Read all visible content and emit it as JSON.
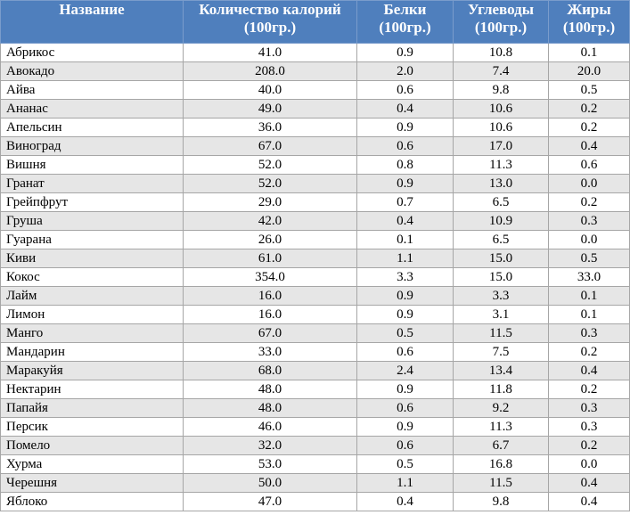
{
  "table": {
    "headers": [
      "Название",
      "Количество калорий (100гр.)",
      "Белки (100гр.)",
      "Углеводы (100гр.)",
      "Жиры (100гр.)"
    ],
    "rows": [
      [
        "Абрикос",
        "41.0",
        "0.9",
        "10.8",
        "0.1"
      ],
      [
        "Авокадо",
        "208.0",
        "2.0",
        "7.4",
        "20.0"
      ],
      [
        "Айва",
        "40.0",
        "0.6",
        "9.8",
        "0.5"
      ],
      [
        "Ананас",
        "49.0",
        "0.4",
        "10.6",
        "0.2"
      ],
      [
        "Апельсин",
        "36.0",
        "0.9",
        "10.6",
        "0.2"
      ],
      [
        "Виноград",
        "67.0",
        "0.6",
        "17.0",
        "0.4"
      ],
      [
        "Вишня",
        "52.0",
        "0.8",
        "11.3",
        "0.6"
      ],
      [
        "Гранат",
        "52.0",
        "0.9",
        "13.0",
        "0.0"
      ],
      [
        "Грейпфрут",
        "29.0",
        "0.7",
        "6.5",
        "0.2"
      ],
      [
        "Груша",
        "42.0",
        "0.4",
        "10.9",
        "0.3"
      ],
      [
        "Гуарана",
        "26.0",
        "0.1",
        "6.5",
        "0.0"
      ],
      [
        "Киви",
        "61.0",
        "1.1",
        "15.0",
        "0.5"
      ],
      [
        "Кокос",
        "354.0",
        "3.3",
        "15.0",
        "33.0"
      ],
      [
        "Лайм",
        "16.0",
        "0.9",
        "3.3",
        "0.1"
      ],
      [
        "Лимон",
        "16.0",
        "0.9",
        "3.1",
        "0.1"
      ],
      [
        "Манго",
        "67.0",
        "0.5",
        "11.5",
        "0.3"
      ],
      [
        "Мандарин",
        "33.0",
        "0.6",
        "7.5",
        "0.2"
      ],
      [
        "Маракуйя",
        "68.0",
        "2.4",
        "13.4",
        "0.4"
      ],
      [
        "Нектарин",
        "48.0",
        "0.9",
        "11.8",
        "0.2"
      ],
      [
        "Папайя",
        "48.0",
        "0.6",
        "9.2",
        "0.3"
      ],
      [
        "Персик",
        "46.0",
        "0.9",
        "11.3",
        "0.3"
      ],
      [
        "Помело",
        "32.0",
        "0.6",
        "6.7",
        "0.2"
      ],
      [
        "Хурма",
        "53.0",
        "0.5",
        "16.8",
        "0.0"
      ],
      [
        "Черешня",
        "50.0",
        "1.1",
        "11.5",
        "0.4"
      ],
      [
        "Яблоко",
        "47.0",
        "0.4",
        "9.8",
        "0.4"
      ]
    ]
  }
}
